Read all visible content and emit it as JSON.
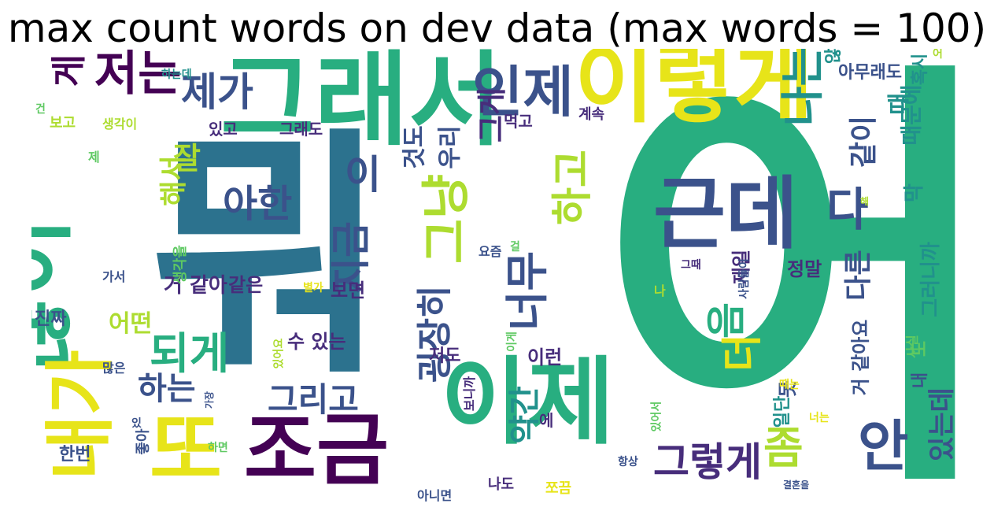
{
  "title": "max count words on dev data (max words = 100)",
  "palette": {
    "purple": "#440154",
    "indigo": "#472d7b",
    "blue": "#3b528b",
    "steel": "#2c728e",
    "teal": "#21918c",
    "sea": "#28ae80",
    "green": "#5ec962",
    "lime": "#addc30",
    "yellow": "#e7e419"
  },
  "words": [
    {
      "text": "어",
      "color": "sea"
    },
    {
      "text": "뭐",
      "color": "steel"
    },
    {
      "text": "그래서",
      "color": "sea"
    },
    {
      "text": "이렇게",
      "color": "yellow"
    },
    {
      "text": "근데",
      "color": "blue"
    },
    {
      "text": "많이",
      "color": "sea"
    },
    {
      "text": "이제",
      "color": "sea"
    },
    {
      "text": "조금",
      "color": "purple"
    },
    {
      "text": "또",
      "color": "yellow"
    },
    {
      "text": "내가",
      "color": "yellow"
    },
    {
      "text": "인제",
      "color": "blue"
    },
    {
      "text": "저는",
      "color": "purple"
    },
    {
      "text": "제가",
      "color": "blue"
    },
    {
      "text": "나는",
      "color": "teal"
    },
    {
      "text": "되게",
      "color": "sea"
    },
    {
      "text": "아한",
      "color": "blue"
    },
    {
      "text": "그냥",
      "color": "lime"
    },
    {
      "text": "하고",
      "color": "lime"
    },
    {
      "text": "너무",
      "color": "blue"
    },
    {
      "text": "좀",
      "color": "lime"
    },
    {
      "text": "안",
      "color": "blue"
    },
    {
      "text": "그렇게",
      "color": "indigo"
    },
    {
      "text": "음",
      "color": "sea"
    },
    {
      "text": "더",
      "color": "yellow"
    },
    {
      "text": "다",
      "color": "blue"
    },
    {
      "text": "지금",
      "color": "blue"
    },
    {
      "text": "이",
      "color": "blue"
    },
    {
      "text": "굉장히",
      "color": "blue"
    },
    {
      "text": "그리고",
      "color": "blue"
    },
    {
      "text": "하는",
      "color": "blue"
    },
    {
      "text": "약간",
      "color": "teal"
    },
    {
      "text": "게",
      "color": "purple"
    },
    {
      "text": "잘",
      "color": "lime"
    },
    {
      "text": "같이",
      "color": "blue"
    },
    {
      "text": "다른",
      "color": "blue"
    },
    {
      "text": "그게",
      "color": "indigo"
    },
    {
      "text": "것도",
      "color": "blue"
    },
    {
      "text": "우리",
      "color": "blue"
    },
    {
      "text": "해서",
      "color": "lime"
    },
    {
      "text": "어떤",
      "color": "lime"
    },
    {
      "text": "거 같아",
      "color": "indigo"
    },
    {
      "text": "같은",
      "color": "indigo"
    },
    {
      "text": "수 있는",
      "color": "indigo"
    },
    {
      "text": "보면",
      "color": "indigo"
    },
    {
      "text": "정말",
      "color": "indigo"
    },
    {
      "text": "제일",
      "color": "indigo"
    },
    {
      "text": "이런",
      "color": "indigo"
    },
    {
      "text": "저도",
      "color": "indigo"
    },
    {
      "text": "진짜",
      "color": "blue"
    },
    {
      "text": "한번",
      "color": "blue"
    },
    {
      "text": "그래도",
      "color": "indigo"
    },
    {
      "text": "있고",
      "color": "indigo"
    },
    {
      "text": "먹고",
      "color": "indigo"
    },
    {
      "text": "계속",
      "color": "indigo"
    },
    {
      "text": "아무래도",
      "color": "blue"
    },
    {
      "text": "때",
      "color": "teal"
    },
    {
      "text": "때문에",
      "color": "teal"
    },
    {
      "text": "막",
      "color": "teal"
    },
    {
      "text": "그러니까",
      "color": "teal"
    },
    {
      "text": "거 같아요",
      "color": "blue"
    },
    {
      "text": "못",
      "color": "blue"
    },
    {
      "text": "일단",
      "color": "teal"
    },
    {
      "text": "있는데",
      "color": "blue"
    },
    {
      "text": "내",
      "color": "blue"
    },
    {
      "text": "도",
      "color": "green"
    },
    {
      "text": "혹시",
      "color": "teal"
    },
    {
      "text": "생각이",
      "color": "lime"
    },
    {
      "text": "보고",
      "color": "lime"
    },
    {
      "text": "하는데",
      "color": "teal"
    },
    {
      "text": "건",
      "color": "green"
    },
    {
      "text": "제",
      "color": "green"
    },
    {
      "text": "생각을",
      "color": "green"
    },
    {
      "text": "가서",
      "color": "blue"
    },
    {
      "text": "많은",
      "color": "blue"
    },
    {
      "text": "요즘",
      "color": "blue"
    },
    {
      "text": "걸",
      "color": "green"
    },
    {
      "text": "그때",
      "color": "indigo"
    },
    {
      "text": "사람들이",
      "color": "blue"
    },
    {
      "text": "나",
      "color": "lime"
    },
    {
      "text": "별가",
      "color": "yellow"
    },
    {
      "text": "이게",
      "color": "green"
    },
    {
      "text": "있어요",
      "color": "lime"
    },
    {
      "text": "사실",
      "color": "green"
    },
    {
      "text": "해",
      "color": "lime"
    },
    {
      "text": "때는",
      "color": "yellow"
    },
    {
      "text": "너는",
      "color": "yellow"
    },
    {
      "text": "항상",
      "color": "blue"
    },
    {
      "text": "있어서",
      "color": "green"
    },
    {
      "text": "보니까",
      "color": "indigo"
    },
    {
      "text": "에",
      "color": "indigo"
    },
    {
      "text": "하면",
      "color": "green"
    },
    {
      "text": "좋아",
      "color": "blue"
    },
    {
      "text": "아니면",
      "color": "blue"
    },
    {
      "text": "나도",
      "color": "indigo"
    },
    {
      "text": "쪼끔",
      "color": "yellow"
    },
    {
      "text": "결혼을",
      "color": "blue"
    },
    {
      "text": "않",
      "color": "teal"
    },
    {
      "text": "가장",
      "color": "blue"
    },
    {
      "text": "있",
      "color": "blue"
    },
    {
      "text": "어",
      "color": "lime"
    }
  ]
}
